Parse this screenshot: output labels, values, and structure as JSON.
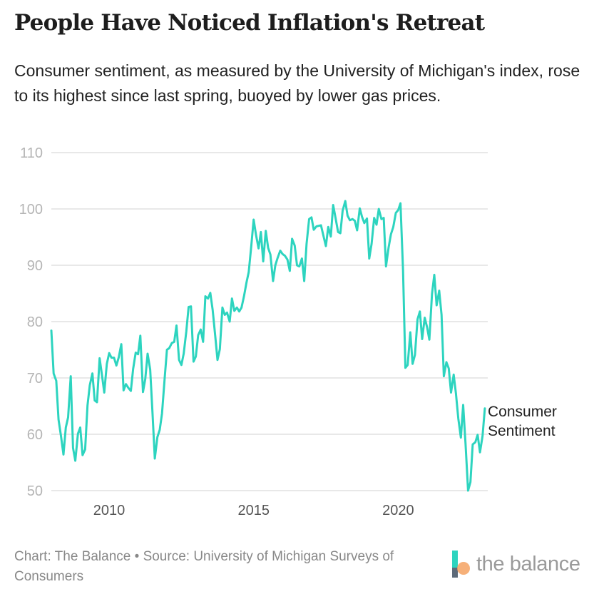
{
  "header": {
    "title": "People Have Noticed Inflation's Retreat",
    "subtitle": "Consumer sentiment, as measured by the University of Michigan's index, rose to its highest since last spring, buoyed by lower gas prices."
  },
  "footer": {
    "caption": "Chart: The Balance • Source: University of Michigan Surveys of Consumers",
    "logo_text": "the balance"
  },
  "colors": {
    "line": "#2dd4bf",
    "grid": "#e0e0e0",
    "tick_text": "#b5b5b5",
    "label_text": "#222222",
    "logo_teal": "#2dd4bf",
    "logo_orange": "#f4a261",
    "logo_slate": "#5e6b7a"
  },
  "chart_data": {
    "type": "line",
    "title": "People Have Noticed Inflation's Retreat",
    "xlabel": "",
    "ylabel": "",
    "xlim": [
      2008.0,
      2023.1
    ],
    "ylim": [
      50,
      110
    ],
    "yticks": [
      50,
      60,
      70,
      80,
      90,
      100,
      110
    ],
    "xticks": [
      2010,
      2015,
      2020
    ],
    "ytick_labels": [
      "50",
      "60",
      "70",
      "80",
      "90",
      "100",
      "110"
    ],
    "xtick_labels": [
      "2010",
      "2015",
      "2020"
    ],
    "grid": true,
    "series": [
      {
        "name": "Consumer Sentiment",
        "label_lines": [
          "Consumer",
          "Sentiment"
        ],
        "x": [
          2008.0,
          2008.08,
          2008.17,
          2008.25,
          2008.33,
          2008.42,
          2008.5,
          2008.58,
          2008.67,
          2008.75,
          2008.83,
          2008.92,
          2009.0,
          2009.08,
          2009.17,
          2009.25,
          2009.33,
          2009.42,
          2009.5,
          2009.58,
          2009.67,
          2009.75,
          2009.83,
          2009.92,
          2010.0,
          2010.08,
          2010.17,
          2010.25,
          2010.33,
          2010.42,
          2010.5,
          2010.58,
          2010.67,
          2010.75,
          2010.83,
          2010.92,
          2011.0,
          2011.08,
          2011.17,
          2011.25,
          2011.33,
          2011.42,
          2011.5,
          2011.58,
          2011.67,
          2011.75,
          2011.83,
          2011.92,
          2012.0,
          2012.08,
          2012.17,
          2012.25,
          2012.33,
          2012.42,
          2012.5,
          2012.58,
          2012.67,
          2012.75,
          2012.83,
          2012.92,
          2013.0,
          2013.08,
          2013.17,
          2013.25,
          2013.33,
          2013.42,
          2013.5,
          2013.58,
          2013.67,
          2013.75,
          2013.83,
          2013.92,
          2014.0,
          2014.08,
          2014.17,
          2014.25,
          2014.33,
          2014.42,
          2014.5,
          2014.58,
          2014.67,
          2014.75,
          2014.83,
          2014.92,
          2015.0,
          2015.08,
          2015.17,
          2015.25,
          2015.33,
          2015.42,
          2015.5,
          2015.58,
          2015.67,
          2015.75,
          2015.83,
          2015.92,
          2016.0,
          2016.08,
          2016.17,
          2016.25,
          2016.33,
          2016.42,
          2016.5,
          2016.58,
          2016.67,
          2016.75,
          2016.83,
          2016.92,
          2017.0,
          2017.08,
          2017.17,
          2017.25,
          2017.33,
          2017.42,
          2017.5,
          2017.58,
          2017.67,
          2017.75,
          2017.83,
          2017.92,
          2018.0,
          2018.08,
          2018.17,
          2018.25,
          2018.33,
          2018.42,
          2018.5,
          2018.58,
          2018.67,
          2018.75,
          2018.83,
          2018.92,
          2019.0,
          2019.08,
          2019.17,
          2019.25,
          2019.33,
          2019.42,
          2019.5,
          2019.58,
          2019.67,
          2019.75,
          2019.83,
          2019.92,
          2020.0,
          2020.08,
          2020.17,
          2020.25,
          2020.33,
          2020.42,
          2020.5,
          2020.58,
          2020.67,
          2020.75,
          2020.83,
          2020.92,
          2021.0,
          2021.08,
          2021.17,
          2021.25,
          2021.33,
          2021.42,
          2021.5,
          2021.58,
          2021.67,
          2021.75,
          2021.83,
          2021.92,
          2022.0,
          2022.08,
          2022.17,
          2022.25,
          2022.33,
          2022.42,
          2022.5,
          2022.58,
          2022.67,
          2022.75,
          2022.83,
          2022.92,
          2023.0
        ],
        "values": [
          78.4,
          70.8,
          69.5,
          62.6,
          59.8,
          56.4,
          61.2,
          63.0,
          70.3,
          57.6,
          55.3,
          60.1,
          61.2,
          56.3,
          57.3,
          65.1,
          68.7,
          70.8,
          66.0,
          65.7,
          73.5,
          70.6,
          67.4,
          72.5,
          74.4,
          73.6,
          73.6,
          72.2,
          73.6,
          76.0,
          67.8,
          68.9,
          68.2,
          67.7,
          71.6,
          74.5,
          74.2,
          77.5,
          67.5,
          69.8,
          74.3,
          71.5,
          63.7,
          55.7,
          59.5,
          60.8,
          63.7,
          69.9,
          75.0,
          75.3,
          76.2,
          76.4,
          79.3,
          73.2,
          72.3,
          74.3,
          78.3,
          82.6,
          82.7,
          72.9,
          73.8,
          77.6,
          78.6,
          76.4,
          84.5,
          84.1,
          85.1,
          82.1,
          77.5,
          73.2,
          75.1,
          82.5,
          81.2,
          81.6,
          80.0,
          84.1,
          81.9,
          82.5,
          81.8,
          82.5,
          84.6,
          86.9,
          88.8,
          93.6,
          98.1,
          95.4,
          93.0,
          95.9,
          90.7,
          96.1,
          93.1,
          91.9,
          87.2,
          90.0,
          91.3,
          92.6,
          92.0,
          91.7,
          91.0,
          89.0,
          94.7,
          93.5,
          90.0,
          89.8,
          91.2,
          87.2,
          93.8,
          98.2,
          98.5,
          96.3,
          96.9,
          97.0,
          97.1,
          95.1,
          93.4,
          96.8,
          95.1,
          100.7,
          98.5,
          95.9,
          95.7,
          99.7,
          101.4,
          98.8,
          98.0,
          98.2,
          97.9,
          96.2,
          100.1,
          98.6,
          97.5,
          98.3,
          91.2,
          93.8,
          98.4,
          97.2,
          100.0,
          98.2,
          98.4,
          89.8,
          93.2,
          95.5,
          96.8,
          99.3,
          99.8,
          101.0,
          89.1,
          71.8,
          72.3,
          78.1,
          72.5,
          74.1,
          80.4,
          81.8,
          76.9,
          80.7,
          79.0,
          76.8,
          84.9,
          88.3,
          82.9,
          85.5,
          81.2,
          70.3,
          72.8,
          71.7,
          67.4,
          70.6,
          67.2,
          62.8,
          59.4,
          65.2,
          58.4,
          50.0,
          51.5,
          58.2,
          58.6,
          59.9,
          56.8,
          59.7,
          64.6
        ]
      }
    ]
  }
}
